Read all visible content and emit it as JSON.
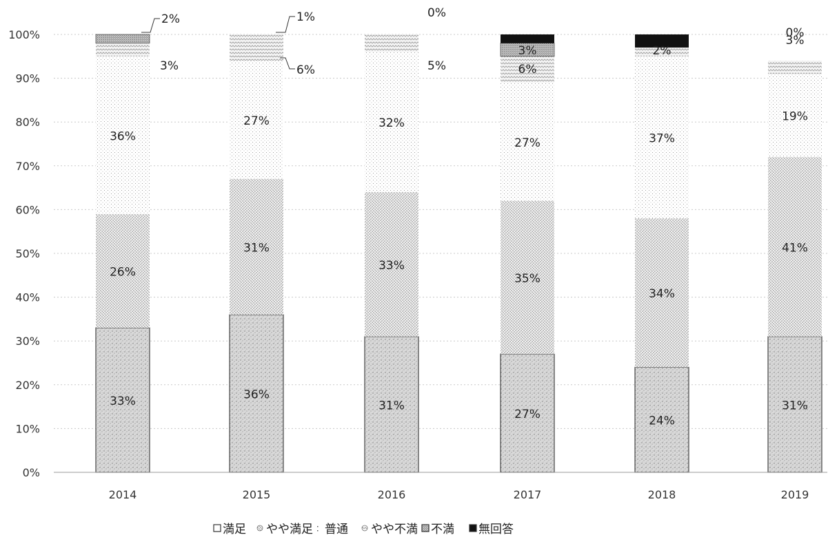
{
  "chart_data": {
    "type": "bar",
    "stacked": true,
    "title": "",
    "xlabel": "",
    "ylabel": "",
    "ylim": [
      0,
      100
    ],
    "categories": [
      "2014",
      "2015",
      "2016",
      "2017",
      "2018",
      "2019"
    ],
    "y_ticks": [
      "0%",
      "10%",
      "20%",
      "30%",
      "40%",
      "50%",
      "60%",
      "70%",
      "80%",
      "90%",
      "100%"
    ],
    "grid": true,
    "legend_position": "bottom",
    "series": [
      {
        "name": "満足",
        "values": [
          33,
          36,
          31,
          27,
          24,
          31
        ],
        "labels": [
          "33%",
          "36%",
          "31%",
          "27%",
          "24%",
          "31%"
        ],
        "color": "#cfcfcf"
      },
      {
        "name": "やや満足",
        "values": [
          26,
          31,
          33,
          35,
          34,
          41
        ],
        "labels": [
          "26%",
          "31%",
          "33%",
          "35%",
          "34%",
          "41%"
        ],
        "color": "#dddddd"
      },
      {
        "name": "普通",
        "values": [
          36,
          27,
          32,
          27,
          37,
          19
        ],
        "labels": [
          "36%",
          "27%",
          "32%",
          "27%",
          "37%",
          "19%"
        ],
        "color": "#f2f2f2"
      },
      {
        "name": "やや不満",
        "values": [
          3,
          6,
          5,
          6,
          2,
          3
        ],
        "labels": [
          "3%",
          "6%",
          "5%",
          "6%",
          "2%",
          "3%"
        ],
        "color": "#e6e6e6"
      },
      {
        "name": "不満",
        "values": [
          2,
          1,
          0,
          3,
          0,
          0
        ],
        "labels": [
          "2%",
          "1%",
          "0%",
          "3%",
          "",
          "0%"
        ],
        "color": "#b5b5b5"
      },
      {
        "name": "無回答",
        "values": [
          0,
          0,
          0,
          3,
          3,
          0
        ],
        "labels": [
          "",
          "",
          "",
          "",
          "",
          ""
        ],
        "color": "#111111"
      }
    ]
  }
}
